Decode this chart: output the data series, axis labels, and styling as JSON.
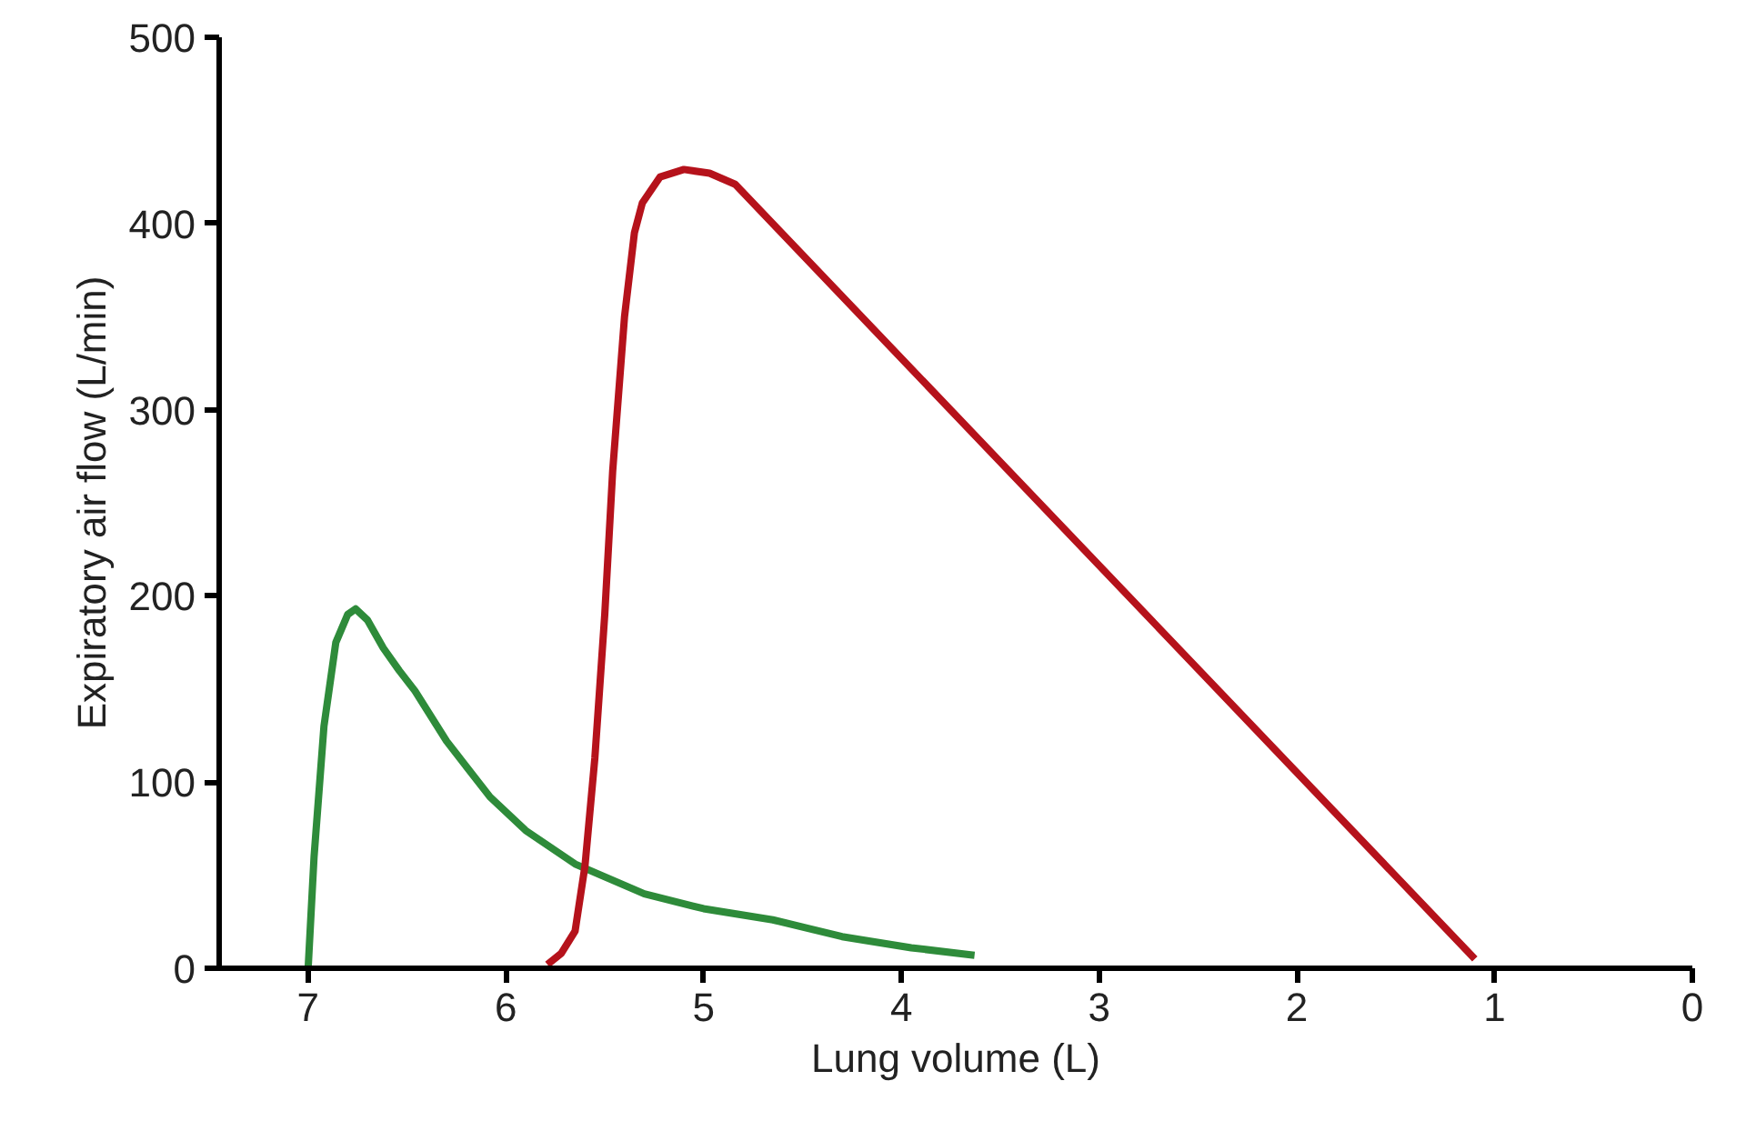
{
  "chart_data": {
    "type": "line",
    "xlabel": "Lung volume (L)",
    "ylabel": "Expiratory air flow (L/min)",
    "xlim": [
      7.45,
      0
    ],
    "ylim": [
      0,
      500
    ],
    "xticks": [
      7,
      6,
      5,
      4,
      3,
      2,
      1,
      0
    ],
    "yticks": [
      0,
      100,
      200,
      300,
      400,
      500
    ],
    "grid": false,
    "series": [
      {
        "color": "#2e8b3a",
        "x": [
          7.0,
          6.97,
          6.92,
          6.86,
          6.8,
          6.76,
          6.7,
          6.62,
          6.54,
          6.46,
          6.3,
          6.08,
          5.9,
          5.65,
          5.3,
          5.0,
          4.65,
          4.3,
          3.95,
          3.63
        ],
        "values": [
          0,
          60,
          130,
          175,
          190,
          193,
          187,
          172,
          160,
          149,
          122,
          92,
          74,
          56,
          40,
          32,
          26,
          17,
          11,
          7
        ]
      },
      {
        "color": "#b5121b",
        "x": [
          5.79,
          5.72,
          5.65,
          5.6,
          5.55,
          5.5,
          5.46,
          5.4,
          5.35,
          5.31,
          5.22,
          5.1,
          4.97,
          4.84,
          1.1
        ],
        "values": [
          2,
          8,
          20,
          55,
          113,
          190,
          267,
          350,
          395,
          411,
          425,
          429,
          427,
          421,
          5
        ]
      }
    ]
  }
}
